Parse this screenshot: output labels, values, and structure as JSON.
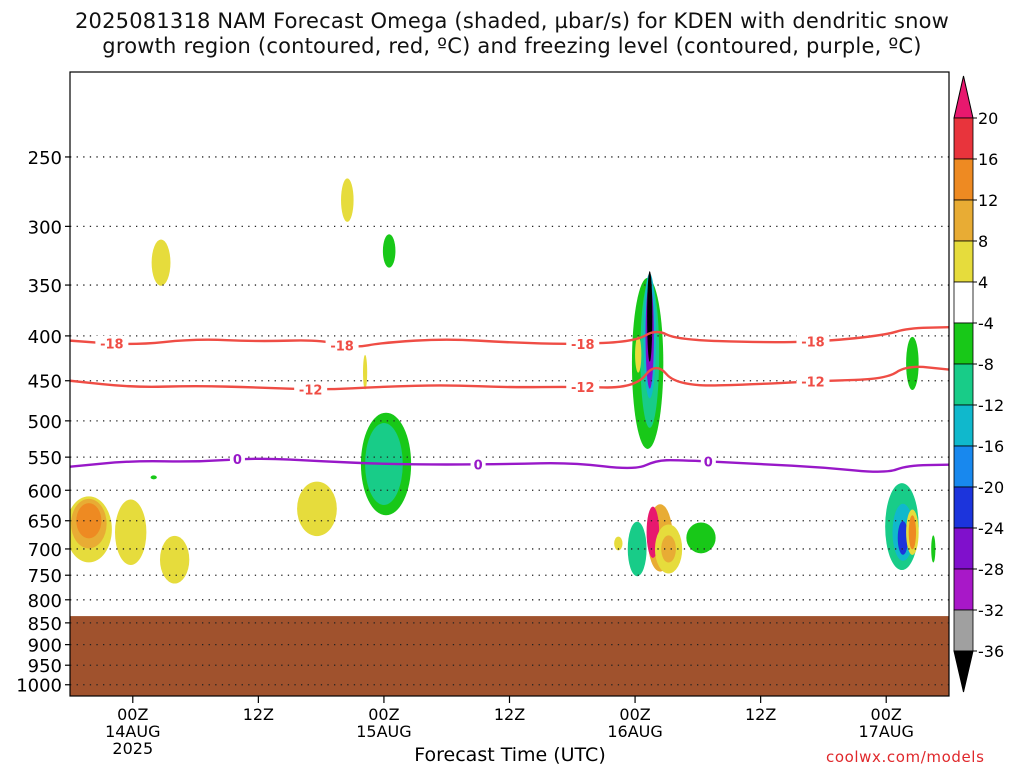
{
  "chart_data": {
    "type": "heatmap",
    "title_line1": "2025081318 NAM Forecast Omega (shaded, µbar/s) for KDEN with dendritic snow",
    "title_line2": "growth region (contoured, red, ºC) and freezing level (contoured, purple, ºC)",
    "xlabel": "Forecast Time (UTC)",
    "y_axis": {
      "scale": "log-pressure",
      "range": [
        1030,
        200
      ],
      "inverted": true,
      "ticks": [
        250,
        300,
        350,
        400,
        450,
        500,
        550,
        600,
        650,
        700,
        750,
        800,
        850,
        900,
        950,
        1000
      ],
      "tick_labels": [
        "250",
        "300",
        "350",
        "400",
        "450",
        "500",
        "550",
        "600",
        "650",
        "700",
        "750",
        "800",
        "850",
        "900",
        "950",
        "1000"
      ],
      "grid": true
    },
    "x_axis": {
      "range_hours": [
        0,
        84
      ],
      "ticks_hours": [
        6,
        18,
        30,
        42,
        54,
        66,
        78
      ],
      "tick_labels": [
        [
          "00Z",
          "14AUG",
          "2025"
        ],
        [
          "12Z"
        ],
        [
          "00Z",
          "15AUG"
        ],
        [
          "12Z"
        ],
        [
          "00Z",
          "16AUG"
        ],
        [
          "12Z"
        ],
        [
          "00Z",
          "17AUG"
        ]
      ]
    },
    "colorbar": {
      "levels": [
        -36,
        -32,
        -28,
        -24,
        -20,
        -16,
        -12,
        -8,
        -4,
        4,
        8,
        12,
        16,
        20
      ],
      "labels": [
        "20",
        "16",
        "12",
        "8",
        "4",
        "-4",
        "-8",
        "-12",
        "-16",
        "-20",
        "-24",
        "-28",
        "-32",
        "-36"
      ],
      "colors": {
        "above_20": "#e8186e",
        "16_20": "#e8343c",
        "12_16": "#ee8a22",
        "8_12": "#e8ac34",
        "4_8": "#e6dc3c",
        "neg4_4": "#ffffff",
        "neg8_neg4": "#18c818",
        "neg12_neg8": "#18cc88",
        "neg16_neg12": "#10b8cc",
        "neg20_neg16": "#1888ee",
        "neg24_neg20": "#1c34dc",
        "neg28_neg24": "#8010cc",
        "neg32_neg28": "#a818c8",
        "neg36_neg32": "#a0a0a0",
        "below_neg36": "#000000"
      }
    },
    "contours": {
      "dgz": [
        {
          "value": -18,
          "label": "-18",
          "color": "#ef4d45",
          "points": [
            [
              0,
              405
            ],
            [
              6,
              410
            ],
            [
              12,
              403
            ],
            [
              18,
              406
            ],
            [
              24,
              404
            ],
            [
              27,
              413
            ],
            [
              30,
              407
            ],
            [
              36,
              403
            ],
            [
              42,
              407
            ],
            [
              48,
              409
            ],
            [
              54,
              406
            ],
            [
              56,
              393
            ],
            [
              58,
              404
            ],
            [
              66,
              407
            ],
            [
              72,
              406
            ],
            [
              78,
              399
            ],
            [
              80,
              392
            ],
            [
              84,
              391
            ]
          ],
          "label_hours": [
            4,
            26,
            49,
            71
          ]
        },
        {
          "value": -12,
          "label": "-12",
          "color": "#ef4d45",
          "points": [
            [
              0,
              450
            ],
            [
              6,
              458
            ],
            [
              12,
              456
            ],
            [
              18,
              458
            ],
            [
              24,
              461
            ],
            [
              30,
              457
            ],
            [
              36,
              455
            ],
            [
              42,
              458
            ],
            [
              48,
              457
            ],
            [
              54,
              459
            ],
            [
              56,
              428
            ],
            [
              58,
              457
            ],
            [
              66,
              454
            ],
            [
              72,
              450
            ],
            [
              78,
              448
            ],
            [
              80,
              432
            ],
            [
              84,
              437
            ]
          ],
          "label_hours": [
            23,
            49,
            71
          ]
        }
      ],
      "freezing": [
        {
          "value": 0,
          "label": "0",
          "color": "#9818c8",
          "points": [
            [
              0,
              564
            ],
            [
              6,
              555
            ],
            [
              12,
              557
            ],
            [
              18,
              551
            ],
            [
              24,
              556
            ],
            [
              30,
              560
            ],
            [
              36,
              561
            ],
            [
              42,
              560
            ],
            [
              48,
              558
            ],
            [
              54,
              569
            ],
            [
              56,
              555
            ],
            [
              58,
              554
            ],
            [
              66,
              560
            ],
            [
              72,
              565
            ],
            [
              78,
              574
            ],
            [
              80,
              562
            ],
            [
              84,
              561
            ]
          ],
          "label_hours": [
            16,
            39,
            61
          ]
        }
      ]
    },
    "omega_cells": [
      {
        "t": 8.0,
        "p": 580,
        "tw": 0.3,
        "pw": 6,
        "v": -6
      },
      {
        "t": 1.8,
        "p": 665,
        "tw": 2.2,
        "pw": 115,
        "v": 6
      },
      {
        "t": 1.8,
        "p": 655,
        "tw": 1.7,
        "pw": 85,
        "v": 9
      },
      {
        "t": 1.8,
        "p": 650,
        "tw": 1.2,
        "pw": 60,
        "v": 13
      },
      {
        "t": 5.8,
        "p": 670,
        "tw": 1.5,
        "pw": 115,
        "v": 6
      },
      {
        "t": 10.0,
        "p": 720,
        "tw": 1.4,
        "pw": 90,
        "v": 6
      },
      {
        "t": 8.7,
        "p": 330,
        "tw": 0.9,
        "pw": 40,
        "v": 6
      },
      {
        "t": 23.6,
        "p": 630,
        "tw": 1.9,
        "pw": 90,
        "v": 6
      },
      {
        "t": 26.5,
        "p": 280,
        "tw": 0.6,
        "pw": 32,
        "v": 6
      },
      {
        "t": 30.5,
        "p": 320,
        "tw": 0.6,
        "pw": 28,
        "v": -6
      },
      {
        "t": 28.2,
        "p": 440,
        "tw": 0.2,
        "pw": 40,
        "v": 6
      },
      {
        "t": 30.2,
        "p": 560,
        "tw": 2.4,
        "pw": 150,
        "v": -7
      },
      {
        "t": 30.0,
        "p": 560,
        "tw": 1.8,
        "pw": 120,
        "v": -10
      },
      {
        "t": 54.2,
        "p": 700,
        "tw": 0.9,
        "pw": 100,
        "v": -8
      },
      {
        "t": 60.3,
        "p": 680,
        "tw": 1.4,
        "pw": 55,
        "v": -6
      },
      {
        "t": 52.4,
        "p": 690,
        "tw": 0.4,
        "pw": 25,
        "v": 6
      },
      {
        "t": 55.2,
        "p": 430,
        "tw": 1.5,
        "pw": 190,
        "v": -6
      },
      {
        "t": 55.4,
        "p": 420,
        "tw": 0.9,
        "pw": 160,
        "v": -9
      },
      {
        "t": 55.4,
        "p": 400,
        "tw": 0.6,
        "pw": 130,
        "v": -14
      },
      {
        "t": 55.4,
        "p": 400,
        "tw": 0.4,
        "pw": 110,
        "v": -24
      },
      {
        "t": 55.4,
        "p": 380,
        "tw": 0.25,
        "pw": 90,
        "v": -40
      },
      {
        "t": 54.3,
        "p": 420,
        "tw": 0.3,
        "pw": 40,
        "v": 6
      },
      {
        "t": 56.4,
        "p": 680,
        "tw": 1.2,
        "pw": 120,
        "v": 9
      },
      {
        "t": 55.7,
        "p": 670,
        "tw": 0.6,
        "pw": 90,
        "v": 22
      },
      {
        "t": 57.2,
        "p": 700,
        "tw": 1.3,
        "pw": 90,
        "v": 6
      },
      {
        "t": 57.2,
        "p": 700,
        "tw": 0.7,
        "pw": 50,
        "v": 10
      },
      {
        "t": 79.5,
        "p": 660,
        "tw": 1.6,
        "pw": 150,
        "v": -8
      },
      {
        "t": 79.6,
        "p": 670,
        "tw": 1.0,
        "pw": 100,
        "v": -15
      },
      {
        "t": 79.6,
        "p": 680,
        "tw": 0.5,
        "pw": 60,
        "v": -22
      },
      {
        "t": 80.5,
        "p": 430,
        "tw": 0.6,
        "pw": 60,
        "v": -6
      },
      {
        "t": 80.5,
        "p": 670,
        "tw": 0.6,
        "pw": 80,
        "v": 6
      },
      {
        "t": 80.5,
        "p": 670,
        "tw": 0.35,
        "pw": 60,
        "v": 14
      },
      {
        "t": 82.5,
        "p": 700,
        "tw": 0.2,
        "pw": 50,
        "v": -6
      }
    ],
    "terrain": {
      "surface_pressure": 835,
      "color": "#a0522d"
    }
  },
  "credit": "coolwx.com/models"
}
